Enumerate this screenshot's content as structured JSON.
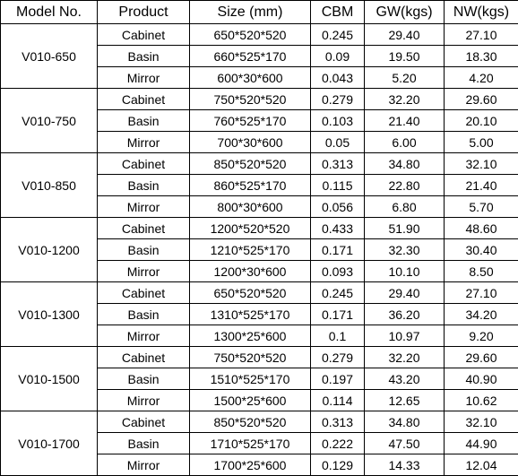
{
  "headers": [
    "Model No.",
    "Product",
    "Size (mm)",
    "CBM",
    "GW(kgs)",
    "NW(kgs)"
  ],
  "groups": [
    {
      "model": "V010-650",
      "rows": [
        [
          "Cabinet",
          "650*520*520",
          "0.245",
          "29.40",
          "27.10"
        ],
        [
          "Basin",
          "660*525*170",
          "0.09",
          "19.50",
          "18.30"
        ],
        [
          "Mirror",
          "600*30*600",
          "0.043",
          "5.20",
          "4.20"
        ]
      ]
    },
    {
      "model": "V010-750",
      "rows": [
        [
          "Cabinet",
          "750*520*520",
          "0.279",
          "32.20",
          "29.60"
        ],
        [
          "Basin",
          "760*525*170",
          "0.103",
          "21.40",
          "20.10"
        ],
        [
          "Mirror",
          "700*30*600",
          "0.05",
          "6.00",
          "5.00"
        ]
      ]
    },
    {
      "model": "V010-850",
      "rows": [
        [
          "Cabinet",
          "850*520*520",
          "0.313",
          "34.80",
          "32.10"
        ],
        [
          "Basin",
          "860*525*170",
          "0.115",
          "22.80",
          "21.40"
        ],
        [
          "Mirror",
          "800*30*600",
          "0.056",
          "6.80",
          "5.70"
        ]
      ]
    },
    {
      "model": "V010-1200",
      "rows": [
        [
          "Cabinet",
          "1200*520*520",
          "0.433",
          "51.90",
          "48.60"
        ],
        [
          "Basin",
          "1210*525*170",
          "0.171",
          "32.30",
          "30.40"
        ],
        [
          "Mirror",
          "1200*30*600",
          "0.093",
          "10.10",
          "8.50"
        ]
      ]
    },
    {
      "model": "V010-1300",
      "rows": [
        [
          "Cabinet",
          "650*520*520",
          "0.245",
          "29.40",
          "27.10"
        ],
        [
          "Basin",
          "1310*525*170",
          "0.171",
          "36.20",
          "34.20"
        ],
        [
          "Mirror",
          "1300*25*600",
          "0.1",
          "10.97",
          "9.20"
        ]
      ]
    },
    {
      "model": "V010-1500",
      "rows": [
        [
          "Cabinet",
          "750*520*520",
          "0.279",
          "32.20",
          "29.60"
        ],
        [
          "Basin",
          "1510*525*170",
          "0.197",
          "43.20",
          "40.90"
        ],
        [
          "Mirror",
          "1500*25*600",
          "0.114",
          "12.65",
          "10.62"
        ]
      ]
    },
    {
      "model": "V010-1700",
      "rows": [
        [
          "Cabinet",
          "850*520*520",
          "0.313",
          "34.80",
          "32.10"
        ],
        [
          "Basin",
          "1710*525*170",
          "0.222",
          "47.50",
          "44.90"
        ],
        [
          "Mirror",
          "1700*25*600",
          "0.129",
          "14.33",
          "12.04"
        ]
      ]
    }
  ]
}
